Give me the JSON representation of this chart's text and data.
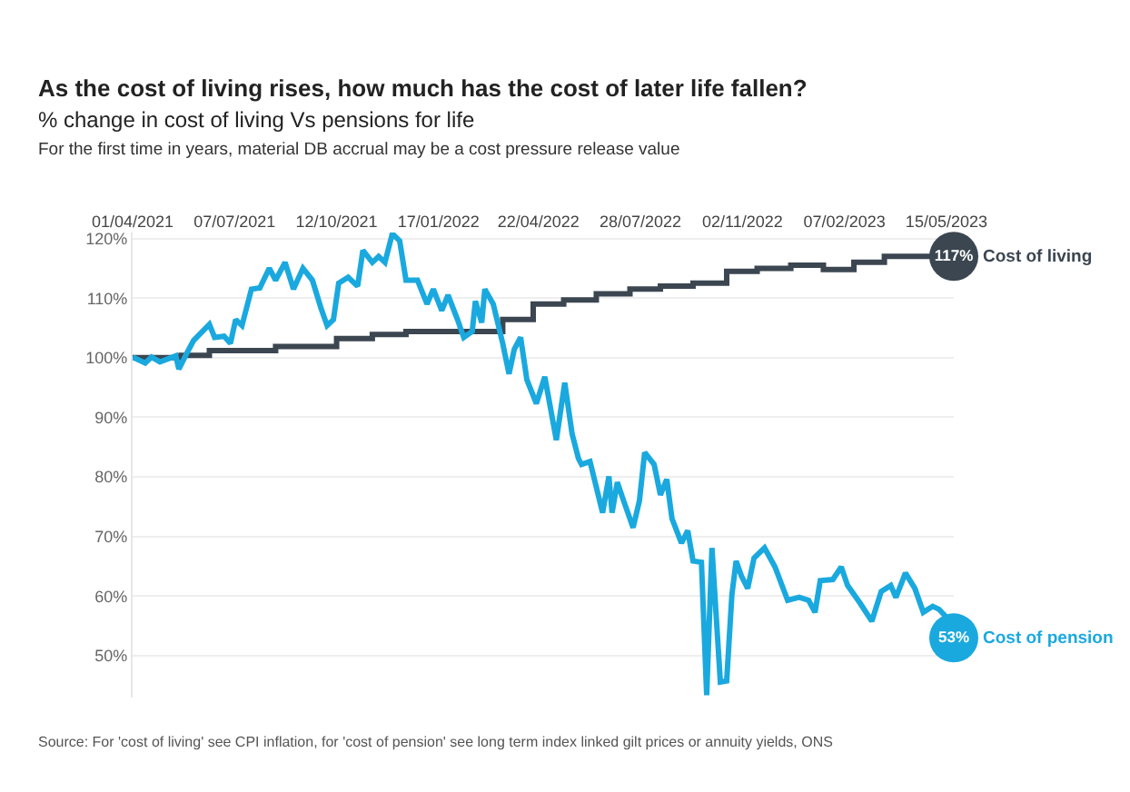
{
  "chart_data": {
    "type": "line",
    "title": "As the cost of living rises, how much has the cost of later life fallen?",
    "subtitle": "% change in cost of living Vs pensions for life",
    "annotations": [
      "For the first time in years, material DB accrual may be a cost pressure release value",
      "Source: For 'cost of living' see CPI inflation, for 'cost of pension' see long term index linked gilt prices or annuity yields, ONS"
    ],
    "xlim": [
      "2021-04-01",
      "2023-05-22"
    ],
    "xticks": [
      {
        "value": "2021-04-01",
        "label": "01/04/2021"
      },
      {
        "value": "2021-07-07",
        "label": "07/07/2021"
      },
      {
        "value": "2021-10-12",
        "label": "12/10/2021"
      },
      {
        "value": "2022-01-17",
        "label": "17/01/2022"
      },
      {
        "value": "2022-04-22",
        "label": "22/04/2022"
      },
      {
        "value": "2022-07-28",
        "label": "28/07/2022"
      },
      {
        "value": "2022-11-02",
        "label": "02/11/2022"
      },
      {
        "value": "2023-02-07",
        "label": "07/02/2023"
      },
      {
        "value": "2023-05-15",
        "label": "15/05/2023"
      }
    ],
    "ylim": [
      43,
      121
    ],
    "yticks": [
      {
        "value": 50,
        "label": "50%"
      },
      {
        "value": 60,
        "label": "60%"
      },
      {
        "value": 70,
        "label": "70%"
      },
      {
        "value": 80,
        "label": "80%"
      },
      {
        "value": 90,
        "label": "90%"
      },
      {
        "value": 100,
        "label": "100%"
      },
      {
        "value": 110,
        "label": "110%"
      },
      {
        "value": 120,
        "label": "120%"
      }
    ],
    "grid": "y",
    "legend": false,
    "marker": "none",
    "line_style": "solid",
    "series": [
      {
        "name": "Cost of living",
        "type": "step",
        "color": "#3b4651",
        "x": [
          "2021-04-01",
          "2021-05-17",
          "2021-06-13",
          "2021-08-15",
          "2021-10-12",
          "2021-11-15",
          "2021-12-17",
          "2022-03-19",
          "2022-04-17",
          "2022-05-16",
          "2022-06-16",
          "2022-07-18",
          "2022-08-16",
          "2022-09-16",
          "2022-10-18",
          "2022-11-16",
          "2022-12-18",
          "2023-01-18",
          "2023-02-16",
          "2023-03-17",
          "2023-05-22"
        ],
        "values": [
          100,
          100.4,
          101.2,
          101.9,
          103.2,
          103.9,
          104.4,
          106.4,
          109,
          109.7,
          110.7,
          111.5,
          112,
          112.5,
          114.5,
          115,
          115.5,
          114.8,
          116,
          117,
          117
        ],
        "value_labels": [
          null,
          null,
          null,
          null,
          null,
          null,
          null,
          null,
          null,
          null,
          null,
          null,
          null,
          null,
          null,
          null,
          null,
          null,
          null,
          null,
          "117%"
        ]
      },
      {
        "name": "Cost of pension",
        "color": "#1aa9df",
        "x": [
          "2021-04-01",
          "2021-04-13",
          "2021-04-19",
          "2021-04-27",
          "2021-05-12",
          "2021-05-15",
          "2021-05-23",
          "2021-05-29",
          "2021-06-13",
          "2021-06-18",
          "2021-06-27",
          "2021-07-03",
          "2021-07-08",
          "2021-07-14",
          "2021-07-23",
          "2021-07-31",
          "2021-08-09",
          "2021-08-15",
          "2021-08-24",
          "2021-09-01",
          "2021-09-10",
          "2021-09-19",
          "2021-09-27",
          "2021-10-03",
          "2021-10-09",
          "2021-10-14",
          "2021-10-23",
          "2021-11-01",
          "2021-11-06",
          "2021-11-15",
          "2021-11-21",
          "2021-11-27",
          "2021-12-04",
          "2021-12-11",
          "2021-12-17",
          "2021-12-28",
          "2022-01-06",
          "2022-01-12",
          "2022-01-20",
          "2022-01-26",
          "2022-02-04",
          "2022-02-10",
          "2022-02-18",
          "2022-02-21",
          "2022-02-27",
          "2022-03-02",
          "2022-03-10",
          "2022-03-19",
          "2022-03-25",
          "2022-03-30",
          "2022-04-05",
          "2022-04-11",
          "2022-04-20",
          "2022-04-28",
          "2022-05-09",
          "2022-05-17",
          "2022-05-24",
          "2022-05-30",
          "2022-06-02",
          "2022-06-10",
          "2022-06-22",
          "2022-06-28",
          "2022-07-01",
          "2022-07-06",
          "2022-07-12",
          "2022-07-21",
          "2022-07-27",
          "2022-08-01",
          "2022-08-10",
          "2022-08-16",
          "2022-08-22",
          "2022-08-27",
          "2022-09-05",
          "2022-09-11",
          "2022-09-16",
          "2022-09-24",
          "2022-09-29",
          "2022-10-04",
          "2022-10-08",
          "2022-10-12",
          "2022-10-18",
          "2022-10-23",
          "2022-10-27",
          "2022-11-01",
          "2022-11-07",
          "2022-11-13",
          "2022-11-23",
          "2022-12-03",
          "2022-12-15",
          "2022-12-26",
          "2023-01-04",
          "2023-01-10",
          "2023-01-15",
          "2023-01-27",
          "2023-02-04",
          "2023-02-10",
          "2023-02-22",
          "2023-03-05",
          "2023-03-14",
          "2023-03-23",
          "2023-03-28",
          "2023-04-06",
          "2023-04-15",
          "2023-04-23",
          "2023-05-02",
          "2023-05-08",
          "2023-05-16",
          "2023-05-22"
        ],
        "values": [
          100.1,
          99.1,
          100.1,
          99.3,
          100.3,
          98.1,
          100.9,
          102.9,
          105.6,
          103.4,
          103.6,
          102.4,
          106.4,
          105.4,
          111.5,
          111.7,
          115,
          113,
          116,
          111.5,
          115,
          113,
          108.4,
          105.4,
          106.4,
          112.5,
          113.5,
          112,
          118,
          116,
          117,
          116,
          120.8,
          119.6,
          113,
          113,
          109,
          111.5,
          107.9,
          110.5,
          106.4,
          103.4,
          104.4,
          109.5,
          105.9,
          111.5,
          109,
          102.4,
          97.3,
          101.4,
          103.4,
          96.3,
          92.3,
          96.8,
          86.2,
          95.8,
          87.2,
          83.1,
          82.1,
          82.6,
          74,
          80.1,
          74,
          79.1,
          76,
          71.5,
          76,
          84.1,
          82.1,
          77,
          79.6,
          73,
          68.9,
          71,
          65.9,
          65.7,
          43.4,
          68.1,
          56.8,
          45.6,
          45.8,
          60.3,
          65.9,
          63.4,
          61.3,
          66.4,
          68.1,
          64.9,
          59.3,
          59.8,
          59.3,
          57.3,
          62.6,
          62.8,
          64.9,
          61.8,
          58.8,
          55.8,
          60.8,
          61.8,
          59.8,
          63.9,
          61.3,
          57.3,
          58.3,
          57.8,
          56.3,
          53
        ],
        "value_labels": [
          null,
          null,
          null,
          null,
          null,
          null,
          null,
          null,
          null,
          null,
          null,
          null,
          null,
          null,
          null,
          null,
          null,
          null,
          null,
          null,
          null,
          null,
          null,
          null,
          null,
          null,
          null,
          null,
          null,
          null,
          null,
          null,
          null,
          null,
          null,
          null,
          null,
          null,
          null,
          null,
          null,
          null,
          null,
          null,
          null,
          null,
          null,
          null,
          null,
          null,
          null,
          null,
          null,
          null,
          null,
          null,
          null,
          null,
          null,
          null,
          null,
          null,
          null,
          null,
          null,
          null,
          null,
          null,
          null,
          null,
          null,
          null,
          null,
          null,
          null,
          null,
          null,
          null,
          null,
          null,
          null,
          null,
          null,
          null,
          null,
          null,
          null,
          null,
          null,
          null,
          null,
          null,
          null,
          null,
          null,
          null,
          null,
          null,
          null,
          null,
          null,
          null,
          null,
          null,
          null,
          null,
          null,
          "53%"
        ]
      }
    ]
  }
}
